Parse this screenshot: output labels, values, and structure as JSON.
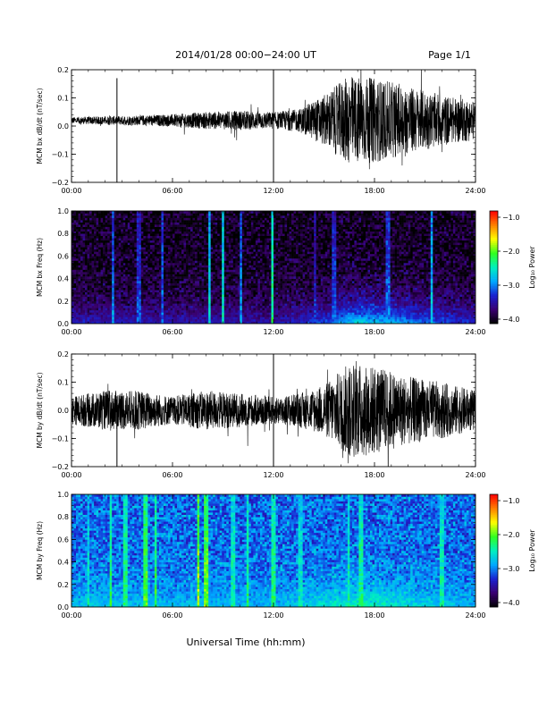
{
  "header": {
    "title": "2014/01/28  00:00−24:00 UT",
    "page_label": "Page 1/1"
  },
  "footer": {
    "xlabel": "Universal Time (hh:mm)"
  },
  "time_ticks": [
    "00:00",
    "06:00",
    "12:00",
    "18:00",
    "24:00"
  ],
  "colorbar": {
    "label": "Log₁₀ Power",
    "ticks": [
      "−1.0",
      "−2.0",
      "−3.0",
      "−4.0"
    ],
    "range": [
      -4.0,
      -1.0
    ],
    "colors": [
      "#000000",
      "#3a0070",
      "#1a20d0",
      "#00a8ff",
      "#00f0c0",
      "#30ff20",
      "#ffff00",
      "#ff8000",
      "#ff0000"
    ]
  },
  "chart_data": [
    {
      "type": "line",
      "name": "bx-timeseries",
      "ylabel": "MCM bx dB/dt (nT/sec)",
      "xlim_hours": [
        0,
        24
      ],
      "ylim": [
        -0.2,
        0.2
      ],
      "yticks": [
        "0.2",
        "0.1",
        "0.0",
        "−0.1",
        "−0.2"
      ],
      "yvalues": [
        0.2,
        0.1,
        0.0,
        -0.1,
        -0.2
      ],
      "envelope": [
        {
          "hour": 0,
          "amp": 0.012
        },
        {
          "hour": 2,
          "amp": 0.015
        },
        {
          "hour": 4,
          "amp": 0.018
        },
        {
          "hour": 6,
          "amp": 0.022
        },
        {
          "hour": 8,
          "amp": 0.03
        },
        {
          "hour": 10,
          "amp": 0.035
        },
        {
          "hour": 12,
          "amp": 0.03
        },
        {
          "hour": 13.5,
          "amp": 0.04
        },
        {
          "hour": 15,
          "amp": 0.09
        },
        {
          "hour": 16.5,
          "amp": 0.16
        },
        {
          "hour": 18,
          "amp": 0.15
        },
        {
          "hour": 20,
          "amp": 0.12
        },
        {
          "hour": 22,
          "amp": 0.09
        },
        {
          "hour": 24,
          "amp": 0.07
        }
      ],
      "offset": 0.02,
      "spikes": [
        {
          "hour": 2.7,
          "min": -0.2,
          "max": 0.17
        },
        {
          "hour": 12.0,
          "min": -0.2,
          "max": 0.2
        }
      ]
    },
    {
      "type": "heatmap",
      "name": "bx-spectrogram",
      "ylabel": "MCM bx Freq (Hz)",
      "xlim_hours": [
        0,
        24
      ],
      "ylim": [
        0.0,
        1.0
      ],
      "yticks": [
        "1.0",
        "0.8",
        "0.6",
        "0.4",
        "0.2",
        "0.0"
      ],
      "yvalues": [
        1.0,
        0.8,
        0.6,
        0.4,
        0.2,
        0.0
      ],
      "base_level": -3.9,
      "lowfreq_boost": [
        {
          "hour": 0,
          "level": -3.3
        },
        {
          "hour": 12,
          "level": -3.4
        },
        {
          "hour": 15,
          "level": -3.1
        },
        {
          "hour": 17,
          "level": -2.6
        },
        {
          "hour": 19,
          "level": -2.8
        },
        {
          "hour": 24,
          "level": -3.3
        }
      ],
      "stripes": [
        {
          "hour": 2.45,
          "level": -2.9
        },
        {
          "hour": 4.0,
          "level": -3.1
        },
        {
          "hour": 5.4,
          "level": -3.0
        },
        {
          "hour": 8.2,
          "level": -2.6
        },
        {
          "hour": 9.0,
          "level": -2.5
        },
        {
          "hour": 10.1,
          "level": -2.9
        },
        {
          "hour": 11.9,
          "level": -2.3
        },
        {
          "hour": 14.5,
          "level": -3.2
        },
        {
          "hour": 15.6,
          "level": -3.1
        },
        {
          "hour": 18.8,
          "level": -3.0
        },
        {
          "hour": 21.4,
          "level": -2.7
        }
      ]
    },
    {
      "type": "line",
      "name": "by-timeseries",
      "ylabel": "MCM by dB/dt (nT/sec)",
      "xlim_hours": [
        0,
        24
      ],
      "ylim": [
        -0.2,
        0.2
      ],
      "yticks": [
        "0.2",
        "0.1",
        "0.0",
        "−0.1",
        "−0.2"
      ],
      "yvalues": [
        0.2,
        0.1,
        0.0,
        -0.1,
        -0.2
      ],
      "envelope": [
        {
          "hour": 0,
          "amp": 0.05
        },
        {
          "hour": 2,
          "amp": 0.07
        },
        {
          "hour": 4,
          "amp": 0.07
        },
        {
          "hour": 6,
          "amp": 0.05
        },
        {
          "hour": 8,
          "amp": 0.07
        },
        {
          "hour": 10,
          "amp": 0.06
        },
        {
          "hour": 12,
          "amp": 0.05
        },
        {
          "hour": 13.5,
          "amp": 0.06
        },
        {
          "hour": 15,
          "amp": 0.09
        },
        {
          "hour": 16.5,
          "amp": 0.17
        },
        {
          "hour": 18,
          "amp": 0.16
        },
        {
          "hour": 20,
          "amp": 0.12
        },
        {
          "hour": 22,
          "amp": 0.1
        },
        {
          "hour": 24,
          "amp": 0.07
        }
      ],
      "offset": 0.0,
      "spikes": [
        {
          "hour": 2.7,
          "min": -0.2,
          "max": 0.05
        },
        {
          "hour": 12.0,
          "min": -0.2,
          "max": 0.2
        }
      ]
    },
    {
      "type": "heatmap",
      "name": "by-spectrogram",
      "ylabel": "MCM by Freq (Hz)",
      "xlim_hours": [
        0,
        24
      ],
      "ylim": [
        0.0,
        1.0
      ],
      "yticks": [
        "1.0",
        "0.8",
        "0.6",
        "0.4",
        "0.2",
        "0.0"
      ],
      "yvalues": [
        1.0,
        0.8,
        0.6,
        0.4,
        0.2,
        0.0
      ],
      "base_level": -3.05,
      "lowfreq_boost": [
        {
          "hour": 0,
          "level": -2.7
        },
        {
          "hour": 12,
          "level": -2.8
        },
        {
          "hour": 17,
          "level": -2.4
        },
        {
          "hour": 24,
          "level": -2.8
        }
      ],
      "stripes": [
        {
          "hour": 1.0,
          "level": -2.5
        },
        {
          "hour": 2.3,
          "level": -2.2
        },
        {
          "hour": 3.2,
          "level": -2.3
        },
        {
          "hour": 4.4,
          "level": -2.1
        },
        {
          "hour": 5.0,
          "level": -2.2
        },
        {
          "hour": 7.5,
          "level": -1.9
        },
        {
          "hour": 8.0,
          "level": -2.0
        },
        {
          "hour": 9.6,
          "level": -2.4
        },
        {
          "hour": 10.5,
          "level": -2.3
        },
        {
          "hour": 12.0,
          "level": -2.3
        },
        {
          "hour": 13.6,
          "level": -2.5
        },
        {
          "hour": 16.5,
          "level": -2.4
        },
        {
          "hour": 17.2,
          "level": -2.3
        },
        {
          "hour": 22.0,
          "level": -2.4
        }
      ]
    }
  ]
}
